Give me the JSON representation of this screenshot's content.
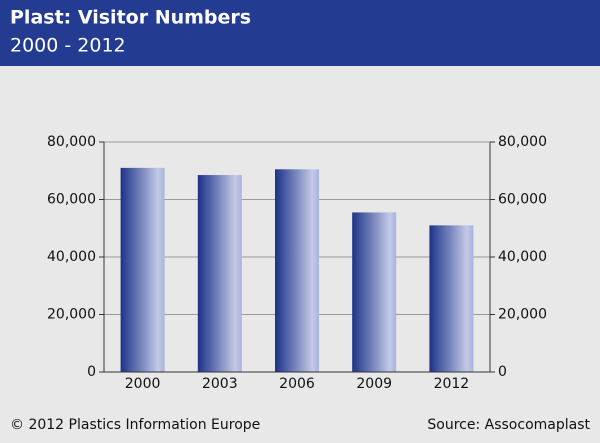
{
  "chart_data": {
    "type": "bar",
    "title": "Plast: Visitor Numbers",
    "subtitle": "2000 - 2012",
    "categories": [
      "2000",
      "2003",
      "2006",
      "2009",
      "2012"
    ],
    "values": [
      71000,
      68500,
      70500,
      55500,
      51000
    ],
    "color": "#1c3288",
    "ylim": [
      0,
      80000
    ],
    "yticks": [
      0,
      {
        "value": 20000,
        "label": "20,000"
      },
      {
        "value": 40000,
        "label": "40,000"
      },
      {
        "value": 60000,
        "label": "60,000"
      },
      {
        "value": 80000,
        "label": "80,000"
      }
    ],
    "y2lim": [
      0,
      80000
    ],
    "y2ticks": [
      0,
      {
        "value": 20000,
        "label": "20,000"
      },
      {
        "value": 40000,
        "label": "40,000"
      },
      {
        "value": 60000,
        "label": "60,000"
      },
      {
        "value": 80000,
        "label": "80,000"
      }
    ],
    "grid": true,
    "footer_left": "© 2012 Plastics Information Europe",
    "footer_right": "Source: Assocomaplast"
  }
}
